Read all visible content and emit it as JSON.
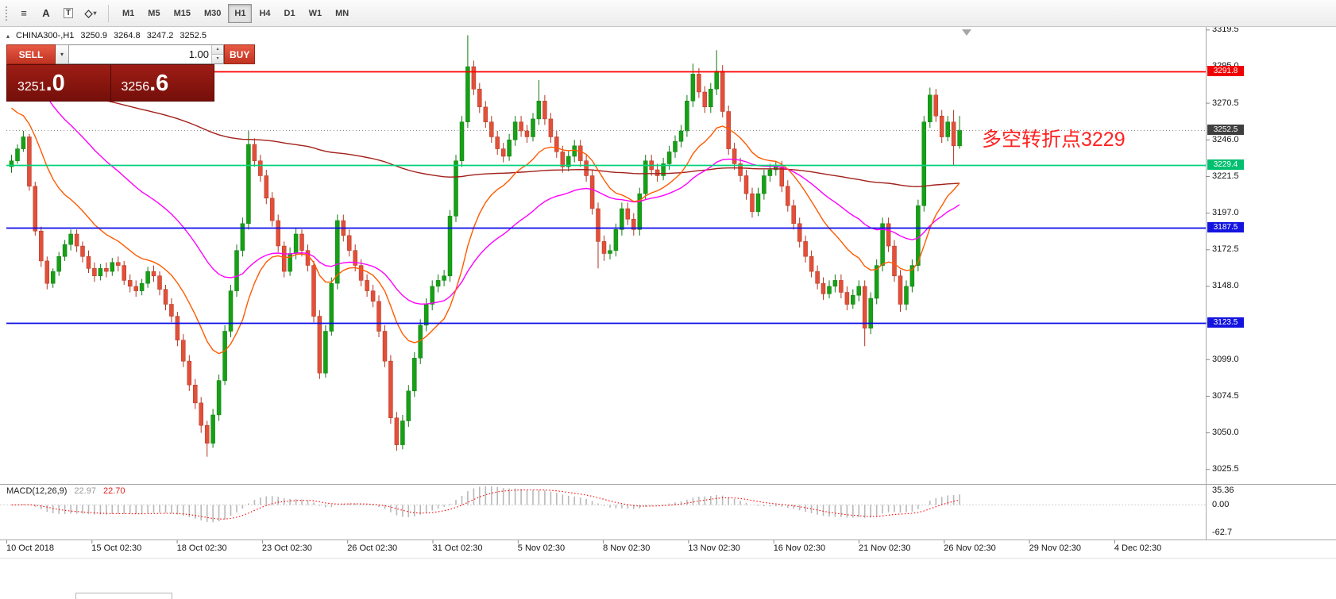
{
  "ui_colors": {
    "candle_up": "#16a016",
    "candle_up_edge": "#0d7a0f",
    "candle_down": "#e2503a",
    "candle_down_edge": "#b23420",
    "macd_hist": "#b9b9b9",
    "macd_signal": "#ff0000",
    "panel_red": "#8e1411",
    "button_red": "#d1402d",
    "annotation_red": "#ff2222"
  },
  "icons": {
    "collapse": "▴",
    "dropdown": "▾",
    "spin_up": "▴",
    "spin_down": "▾"
  },
  "toolbar": {
    "tools": [
      {
        "name": "lines-tool",
        "glyph": "≡"
      },
      {
        "name": "text-tool",
        "glyph": "A"
      },
      {
        "name": "text-label-tool",
        "glyph": "T"
      },
      {
        "name": "shapes-tool",
        "glyph": "◇"
      }
    ],
    "timeframes": [
      "M1",
      "M5",
      "M15",
      "M30",
      "H1",
      "H4",
      "D1",
      "W1",
      "MN"
    ],
    "active_timeframe": "H1"
  },
  "trade_panel": {
    "sell_label": "SELL",
    "buy_label": "BUY",
    "volume_value": "1.00",
    "sell_price": {
      "main": "3251",
      "big": ".0"
    },
    "buy_price": {
      "main": "3256",
      "big": ".6"
    }
  },
  "chart_header": {
    "symbol": "CHINA300-,H1",
    "open": "3250.9",
    "high": "3264.8",
    "low": "3247.2",
    "close": "3252.5"
  },
  "annotation": {
    "text": "多空转折点3229",
    "color": "#ff2222"
  },
  "price_axis": {
    "labels": [
      "3319.5",
      "3295.0",
      "3270.5",
      "3246.0",
      "3221.5",
      "3197.0",
      "3172.5",
      "3148.0",
      "3123.5",
      "3099.0",
      "3074.5",
      "3050.0",
      "3025.5"
    ]
  },
  "levels": [
    {
      "label": "3291.8",
      "price": 3291.8,
      "color": "#ff0000",
      "style": "solid",
      "badge": "#f00000"
    },
    {
      "label": "3252.5",
      "price": 3252.5,
      "color": "#8c8c8c",
      "style": "dotted",
      "badge": "#3f3f3f"
    },
    {
      "label": "3229.4",
      "price": 3229.4,
      "color": "#00d17c",
      "style": "solid",
      "badge": "#00c070"
    },
    {
      "label": "3187.5",
      "price": 3187.5,
      "color": "#0a0ae8",
      "style": "solid",
      "badge": "#1414e0"
    },
    {
      "label": "3123.5",
      "price": 3123.5,
      "color": "#0a0ae8",
      "style": "solid",
      "badge": "#1414e0"
    }
  ],
  "macd_panel": {
    "label": "MACD(12,26,9)",
    "main_value": "22.97",
    "signal_value": "22.70",
    "axis_labels": [
      "35.36",
      "0.00",
      "-62.7"
    ]
  },
  "time_axis": {
    "labels": [
      "10 Oct 2018",
      "15 Oct 02:30",
      "18 Oct 02:30",
      "23 Oct 02:30",
      "26 Oct 02:30",
      "31 Oct 02:30",
      "5 Nov 02:30",
      "8 Nov 02:30",
      "13 Nov 02:30",
      "16 Nov 02:30",
      "21 Nov 02:30",
      "26 Nov 02:30",
      "29 Nov 02:30",
      "4 Dec 02:30"
    ]
  },
  "chart_data": {
    "type": "candlestick",
    "symbol": "CHINA300-",
    "timeframe": "H1",
    "ohlc_display": {
      "open": 3250.9,
      "high": 3264.8,
      "low": 3247.2,
      "close": 3252.5
    },
    "current_price": 3252.5,
    "horizontal_levels": [
      3291.8,
      3229.4,
      3187.5,
      3123.5
    ],
    "ylim": [
      3015.8,
      3321.0
    ],
    "price_tick_step": 24.5,
    "ma": {
      "slow": {
        "period": 240,
        "seed": 3286,
        "color": "#a2201a"
      },
      "mid": {
        "period": 40,
        "seed": 3305,
        "color": "#ff00ff"
      },
      "fast": {
        "period": 16,
        "seed": 3272,
        "color": "#ff5a00"
      }
    },
    "macd": {
      "fast": 12,
      "slow": 26,
      "signal": 9,
      "range": [
        -62.7,
        35.36
      ],
      "display_main": 22.97,
      "display_signal": 22.7
    },
    "candles": [
      [
        3228,
        3236,
        3224,
        3232
      ],
      [
        3232,
        3243,
        3230,
        3240
      ],
      [
        3240,
        3252,
        3238,
        3248
      ],
      [
        3248,
        3250,
        3212,
        3215
      ],
      [
        3215,
        3218,
        3182,
        3185
      ],
      [
        3185,
        3188,
        3161,
        3165
      ],
      [
        3165,
        3168,
        3146,
        3150
      ],
      [
        3150,
        3160,
        3147,
        3158
      ],
      [
        3158,
        3171,
        3155,
        3168
      ],
      [
        3168,
        3179,
        3165,
        3176
      ],
      [
        3176,
        3186,
        3172,
        3183
      ],
      [
        3183,
        3186,
        3171,
        3175
      ],
      [
        3175,
        3178,
        3164,
        3168
      ],
      [
        3168,
        3172,
        3157,
        3160
      ],
      [
        3160,
        3164,
        3151,
        3155
      ],
      [
        3155,
        3163,
        3152,
        3160
      ],
      [
        3160,
        3164,
        3154,
        3158
      ],
      [
        3158,
        3167,
        3155,
        3164
      ],
      [
        3164,
        3168,
        3158,
        3162
      ],
      [
        3162,
        3165,
        3149,
        3152
      ],
      [
        3152,
        3156,
        3144,
        3148
      ],
      [
        3148,
        3152,
        3141,
        3145
      ],
      [
        3145,
        3153,
        3142,
        3150
      ],
      [
        3150,
        3161,
        3147,
        3158
      ],
      [
        3158,
        3162,
        3151,
        3155
      ],
      [
        3155,
        3158,
        3142,
        3146
      ],
      [
        3146,
        3149,
        3132,
        3136
      ],
      [
        3136,
        3140,
        3124,
        3128
      ],
      [
        3128,
        3131,
        3108,
        3112
      ],
      [
        3112,
        3116,
        3094,
        3098
      ],
      [
        3098,
        3102,
        3078,
        3082
      ],
      [
        3082,
        3086,
        3066,
        3070
      ],
      [
        3070,
        3074,
        3050,
        3055
      ],
      [
        3055,
        3058,
        3034,
        3043
      ],
      [
        3043,
        3066,
        3040,
        3062
      ],
      [
        3062,
        3089,
        3058,
        3085
      ],
      [
        3085,
        3122,
        3082,
        3118
      ],
      [
        3118,
        3149,
        3114,
        3145
      ],
      [
        3145,
        3176,
        3141,
        3172
      ],
      [
        3172,
        3194,
        3168,
        3190
      ],
      [
        3190,
        3252,
        3186,
        3243
      ],
      [
        3243,
        3247,
        3228,
        3232
      ],
      [
        3232,
        3236,
        3218,
        3222
      ],
      [
        3222,
        3226,
        3203,
        3207
      ],
      [
        3207,
        3211,
        3188,
        3192
      ],
      [
        3192,
        3196,
        3171,
        3175
      ],
      [
        3175,
        3178,
        3154,
        3158
      ],
      [
        3158,
        3174,
        3155,
        3170
      ],
      [
        3170,
        3187,
        3166,
        3183
      ],
      [
        3183,
        3186,
        3168,
        3172
      ],
      [
        3172,
        3176,
        3158,
        3162
      ],
      [
        3162,
        3165,
        3124,
        3128
      ],
      [
        3128,
        3132,
        3086,
        3090
      ],
      [
        3090,
        3122,
        3087,
        3118
      ],
      [
        3118,
        3154,
        3115,
        3150
      ],
      [
        3150,
        3196,
        3146,
        3192
      ],
      [
        3192,
        3196,
        3178,
        3182
      ],
      [
        3182,
        3186,
        3168,
        3172
      ],
      [
        3172,
        3176,
        3158,
        3162
      ],
      [
        3162,
        3166,
        3148,
        3152
      ],
      [
        3152,
        3156,
        3141,
        3145
      ],
      [
        3145,
        3149,
        3134,
        3138
      ],
      [
        3138,
        3142,
        3114,
        3118
      ],
      [
        3118,
        3122,
        3094,
        3098
      ],
      [
        3098,
        3102,
        3056,
        3060
      ],
      [
        3060,
        3064,
        3038,
        3042
      ],
      [
        3042,
        3062,
        3039,
        3058
      ],
      [
        3058,
        3082,
        3054,
        3078
      ],
      [
        3078,
        3104,
        3074,
        3100
      ],
      [
        3100,
        3126,
        3096,
        3122
      ],
      [
        3122,
        3140,
        3118,
        3136
      ],
      [
        3136,
        3152,
        3132,
        3148
      ],
      [
        3148,
        3156,
        3144,
        3152
      ],
      [
        3152,
        3159,
        3148,
        3155
      ],
      [
        3155,
        3199,
        3151,
        3195
      ],
      [
        3195,
        3236,
        3191,
        3232
      ],
      [
        3232,
        3262,
        3228,
        3258
      ],
      [
        3258,
        3316,
        3254,
        3295
      ],
      [
        3295,
        3299,
        3276,
        3280
      ],
      [
        3280,
        3284,
        3264,
        3268
      ],
      [
        3268,
        3272,
        3254,
        3258
      ],
      [
        3258,
        3262,
        3244,
        3248
      ],
      [
        3248,
        3252,
        3236,
        3240
      ],
      [
        3240,
        3244,
        3231,
        3235
      ],
      [
        3235,
        3250,
        3232,
        3246
      ],
      [
        3246,
        3262,
        3242,
        3258
      ],
      [
        3258,
        3262,
        3248,
        3252
      ],
      [
        3252,
        3256,
        3244,
        3248
      ],
      [
        3248,
        3264,
        3245,
        3260
      ],
      [
        3260,
        3286,
        3256,
        3272
      ],
      [
        3272,
        3276,
        3256,
        3260
      ],
      [
        3260,
        3264,
        3244,
        3248
      ],
      [
        3248,
        3252,
        3234,
        3238
      ],
      [
        3238,
        3242,
        3224,
        3228
      ],
      [
        3228,
        3239,
        3225,
        3235
      ],
      [
        3235,
        3246,
        3231,
        3242
      ],
      [
        3242,
        3246,
        3228,
        3232
      ],
      [
        3232,
        3236,
        3218,
        3222
      ],
      [
        3222,
        3226,
        3196,
        3200
      ],
      [
        3200,
        3204,
        3160,
        3178
      ],
      [
        3178,
        3182,
        3165,
        3170
      ],
      [
        3170,
        3176,
        3166,
        3172
      ],
      [
        3172,
        3190,
        3168,
        3186
      ],
      [
        3186,
        3204,
        3182,
        3200
      ],
      [
        3200,
        3204,
        3189,
        3193
      ],
      [
        3193,
        3197,
        3182,
        3186
      ],
      [
        3186,
        3214,
        3182,
        3210
      ],
      [
        3210,
        3236,
        3206,
        3232
      ],
      [
        3232,
        3236,
        3222,
        3226
      ],
      [
        3226,
        3230,
        3218,
        3222
      ],
      [
        3222,
        3234,
        3219,
        3230
      ],
      [
        3230,
        3242,
        3226,
        3238
      ],
      [
        3238,
        3249,
        3234,
        3245
      ],
      [
        3245,
        3256,
        3241,
        3252
      ],
      [
        3252,
        3276,
        3248,
        3272
      ],
      [
        3272,
        3297,
        3268,
        3290
      ],
      [
        3290,
        3294,
        3274,
        3278
      ],
      [
        3278,
        3282,
        3264,
        3268
      ],
      [
        3268,
        3284,
        3264,
        3280
      ],
      [
        3280,
        3306,
        3276,
        3292
      ],
      [
        3292,
        3296,
        3261,
        3265
      ],
      [
        3265,
        3269,
        3236,
        3240
      ],
      [
        3240,
        3244,
        3226,
        3230
      ],
      [
        3230,
        3234,
        3218,
        3222
      ],
      [
        3222,
        3226,
        3206,
        3210
      ],
      [
        3210,
        3214,
        3194,
        3198
      ],
      [
        3198,
        3214,
        3195,
        3210
      ],
      [
        3210,
        3226,
        3206,
        3222
      ],
      [
        3222,
        3230,
        3218,
        3226
      ],
      [
        3226,
        3232,
        3222,
        3228
      ],
      [
        3228,
        3232,
        3211,
        3215
      ],
      [
        3215,
        3219,
        3198,
        3202
      ],
      [
        3202,
        3206,
        3186,
        3190
      ],
      [
        3190,
        3194,
        3174,
        3178
      ],
      [
        3178,
        3182,
        3164,
        3168
      ],
      [
        3168,
        3172,
        3154,
        3158
      ],
      [
        3158,
        3162,
        3146,
        3150
      ],
      [
        3150,
        3154,
        3139,
        3143
      ],
      [
        3143,
        3152,
        3140,
        3148
      ],
      [
        3148,
        3156,
        3144,
        3152
      ],
      [
        3152,
        3156,
        3140,
        3144
      ],
      [
        3144,
        3148,
        3132,
        3136
      ],
      [
        3136,
        3146,
        3133,
        3142
      ],
      [
        3142,
        3152,
        3138,
        3148
      ],
      [
        3148,
        3152,
        3108,
        3120
      ],
      [
        3120,
        3144,
        3116,
        3140
      ],
      [
        3140,
        3166,
        3136,
        3162
      ],
      [
        3162,
        3194,
        3158,
        3190
      ],
      [
        3190,
        3194,
        3171,
        3175
      ],
      [
        3175,
        3179,
        3151,
        3155
      ],
      [
        3155,
        3159,
        3131,
        3136
      ],
      [
        3136,
        3152,
        3132,
        3148
      ],
      [
        3148,
        3166,
        3144,
        3162
      ],
      [
        3162,
        3206,
        3158,
        3202
      ],
      [
        3202,
        3262,
        3198,
        3258
      ],
      [
        3258,
        3281,
        3254,
        3276
      ],
      [
        3276,
        3280,
        3258,
        3262
      ],
      [
        3262,
        3266,
        3244,
        3248
      ],
      [
        3248,
        3262,
        3245,
        3258
      ],
      [
        3258,
        3266,
        3229,
        3242
      ],
      [
        3242,
        3262,
        3240,
        3252.5
      ]
    ]
  }
}
